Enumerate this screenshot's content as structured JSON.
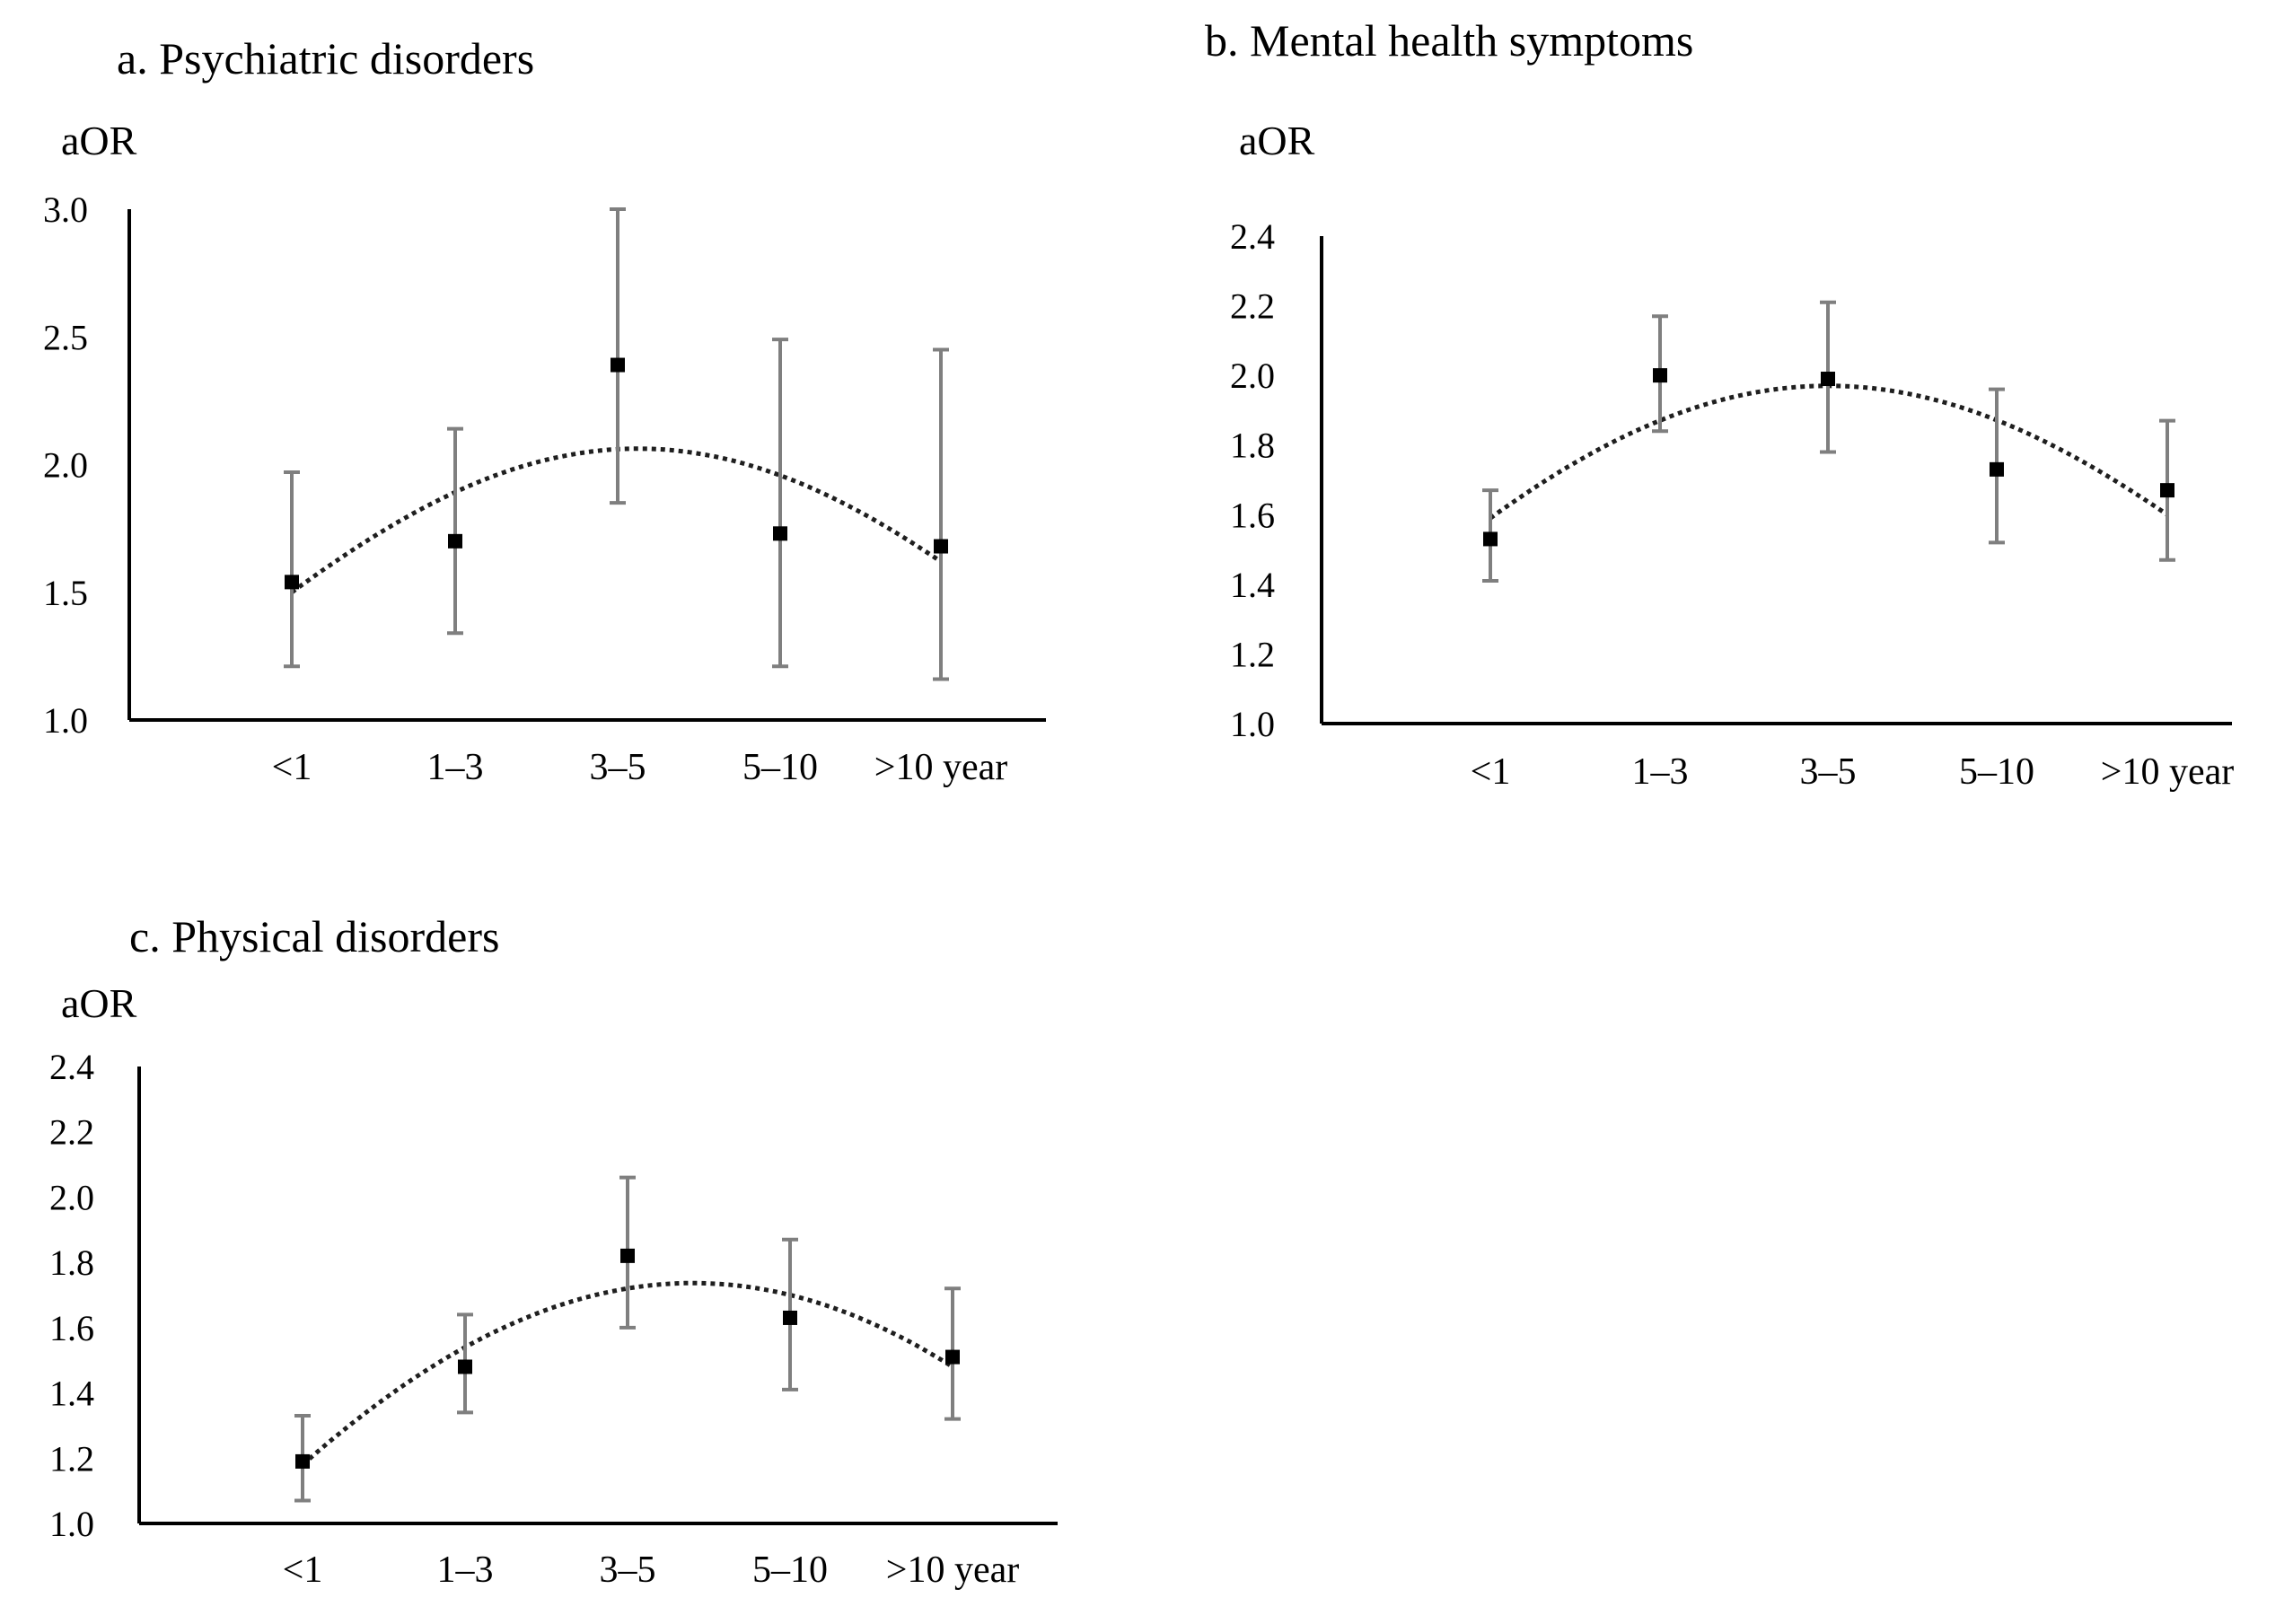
{
  "chart_data": [
    {
      "type": "scatter",
      "title": "a. Psychiatric disorders",
      "ylabel": "aOR",
      "xlabel": "",
      "ylim": [
        1.0,
        3.0
      ],
      "yticks": [
        "1.0",
        "1.5",
        "2.0",
        "2.5",
        "3.0"
      ],
      "categories": [
        "<1",
        "1–3",
        "3–5",
        "5–10",
        ">10 year"
      ],
      "series": [
        {
          "name": "aOR",
          "values": [
            1.54,
            1.7,
            2.39,
            1.73,
            1.68
          ],
          "lower": [
            1.21,
            1.34,
            1.85,
            1.21,
            1.16
          ],
          "upper": [
            1.97,
            2.14,
            3.0,
            2.49,
            2.45
          ]
        }
      ],
      "trend": {
        "type": "quadratic dotted",
        "values": [
          1.5,
          1.89,
          2.06,
          1.96,
          1.62
        ]
      }
    },
    {
      "type": "scatter",
      "title": "b. Mental health symptoms",
      "ylabel": "aOR",
      "xlabel": "",
      "ylim": [
        1.0,
        2.4
      ],
      "yticks": [
        "1.0",
        "1.2",
        "1.4",
        "1.6",
        "1.8",
        "2.0",
        "2.2",
        "2.4"
      ],
      "categories": [
        "<1",
        "1–3",
        "3–5",
        "5–10",
        ">10 year"
      ],
      "series": [
        {
          "name": "aOR",
          "values": [
            1.53,
            2.0,
            1.99,
            1.73,
            1.67
          ],
          "lower": [
            1.41,
            1.84,
            1.78,
            1.52,
            1.47
          ],
          "upper": [
            1.67,
            2.17,
            2.21,
            1.96,
            1.87
          ]
        }
      ],
      "trend": {
        "type": "quadratic dotted",
        "values": [
          1.59,
          1.87,
          1.97,
          1.87,
          1.6
        ]
      }
    },
    {
      "type": "scatter",
      "title": "c. Physical disorders",
      "ylabel": "aOR",
      "xlabel": "",
      "ylim": [
        1.0,
        2.4
      ],
      "yticks": [
        "1.0",
        "1.2",
        "1.4",
        "1.6",
        "1.8",
        "2.0",
        "2.2",
        "2.4"
      ],
      "categories": [
        "<1",
        "1–3",
        "3–5",
        "5–10",
        ">10 year"
      ],
      "series": [
        {
          "name": "aOR",
          "values": [
            1.19,
            1.48,
            1.82,
            1.63,
            1.51
          ],
          "lower": [
            1.07,
            1.34,
            1.6,
            1.41,
            1.32
          ],
          "upper": [
            1.33,
            1.64,
            2.06,
            1.87,
            1.72
          ]
        }
      ],
      "trend": {
        "type": "quadratic dotted",
        "values": [
          1.18,
          1.54,
          1.72,
          1.7,
          1.48
        ]
      }
    }
  ]
}
